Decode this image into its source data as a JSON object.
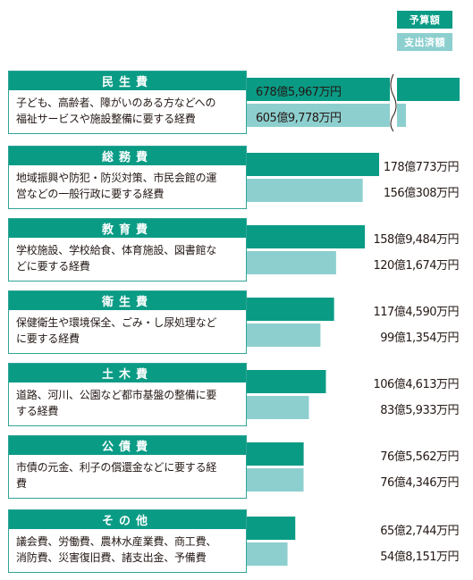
{
  "colors": {
    "budget": "#0a9b85",
    "spent": "#8dcfcf",
    "header": "#0a9b85",
    "border": "#2fa595"
  },
  "legend": {
    "budget": "予算額",
    "spent": "支出済額"
  },
  "chart_data": {
    "type": "bar",
    "orientation": "horizontal",
    "unit": "万円",
    "series": [
      {
        "name": "予算額",
        "values": [
          6785967,
          1780773,
          1589484,
          1174590,
          1064613,
          765562,
          652744
        ]
      },
      {
        "name": "支出済額",
        "values": [
          6059778,
          1560308,
          1201674,
          991354,
          835933,
          764346,
          548151
        ]
      }
    ],
    "value_labels": [
      {
        "budget": "678億5,967万円",
        "spent": "605億9,778万円"
      },
      {
        "budget": "178億773万円",
        "spent": "156億308万円"
      },
      {
        "budget": "158億9,484万円",
        "spent": "120億1,674万円"
      },
      {
        "budget": "117億4,590万円",
        "spent": "99億1,354万円"
      },
      {
        "budget": "106億4,613万円",
        "spent": "83億5,933万円"
      },
      {
        "budget": "76億5,562万円",
        "spent": "76億4,346万円"
      },
      {
        "budget": "65億2,744万円",
        "spent": "54億8,151万円"
      }
    ],
    "categories": [
      {
        "name": "民生費",
        "description": [
          "子ども、高齢者、障がいのある方などへの",
          "福祉サービスや施設整備に要する経費"
        ]
      },
      {
        "name": "総務費",
        "description": [
          "地域振興や防犯・防災対策、市民会館の運",
          "営などの一般行政に要する経費"
        ]
      },
      {
        "name": "教育費",
        "description": [
          "学校施設、学校給食、体育施設、図書館な",
          "どに要する経費"
        ]
      },
      {
        "name": "衛生費",
        "description": [
          "保健衛生や環境保全、ごみ・し尿処理など",
          "に要する経費"
        ]
      },
      {
        "name": "土木費",
        "description": [
          "道路、河川、公園など都市基盤の整備に要",
          "する経費"
        ]
      },
      {
        "name": "公債費",
        "description": [
          "市債の元金、利子の償還金などに要する経",
          "費"
        ]
      },
      {
        "name": "その他",
        "description": [
          "議会費、労働費、農林水産業費、商工費、",
          "消防費、災害復旧費、諸支出金、予備費"
        ]
      }
    ],
    "axis_break": "民生費"
  }
}
